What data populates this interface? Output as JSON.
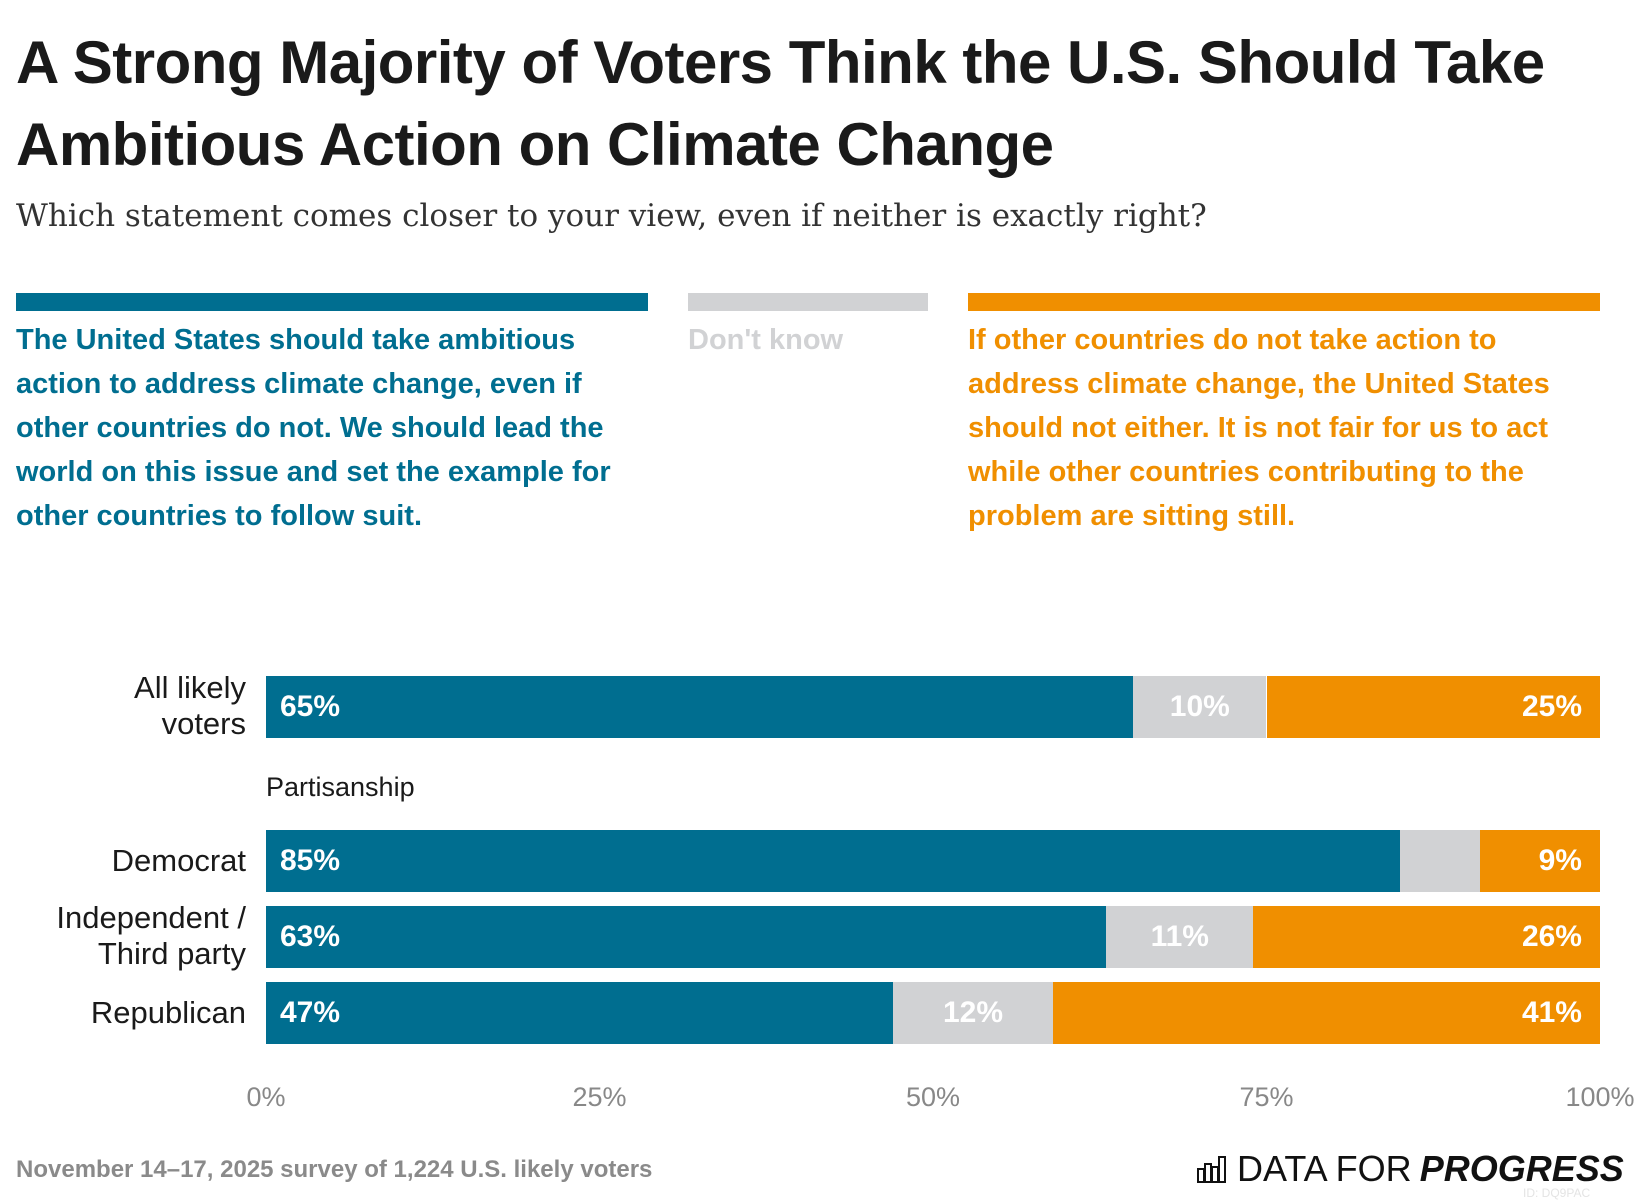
{
  "title": "A Strong Majority of Voters Think the U.S. Should Take Ambitious Action on Climate Change",
  "subtitle": "Which statement comes closer to your view, even if neither is exactly right?",
  "colors": {
    "ambitious": "#006e90",
    "dont_know": "#d1d2d4",
    "not_either": "#f08f00"
  },
  "legend": {
    "ambitious": "The United States should take ambitious action to address climate change, even if other countries do not. We should lead the world on this issue and set the example for other countries to follow suit.",
    "dont_know": "Don't know",
    "not_either": "If other countries do not take action to address climate change, the United States should not either. It is not fair for us to act while other countries contributing to the problem are sitting still."
  },
  "group_label": "Partisanship",
  "footer": "November 14–17, 2025 survey of 1,224 U.S. likely voters",
  "logo": {
    "text_light": "DATA FOR",
    "text_bold": "PROGRESS",
    "id": "ID: DQ9PAC"
  },
  "chart_data": {
    "type": "bar",
    "orientation": "horizontal",
    "stacked": true,
    "categories": [
      "All likely voters",
      "Democrat",
      "Independent / Third party",
      "Republican"
    ],
    "series": [
      {
        "name": "The United States should take ambitious action",
        "values": [
          65,
          85,
          63,
          47
        ]
      },
      {
        "name": "Don't know",
        "values": [
          10,
          6,
          11,
          12
        ]
      },
      {
        "name": "If other countries do not take action, the United States should not either",
        "values": [
          25,
          9,
          26,
          41
        ]
      }
    ],
    "labels": [
      [
        "65%",
        "10%",
        "25%"
      ],
      [
        "85%",
        "",
        "9%"
      ],
      [
        "63%",
        "11%",
        "26%"
      ],
      [
        "47%",
        "12%",
        "41%"
      ]
    ],
    "xlim": [
      0,
      100
    ],
    "xticks": [
      "0%",
      "25%",
      "50%",
      "75%",
      "100%"
    ],
    "grid": false
  }
}
